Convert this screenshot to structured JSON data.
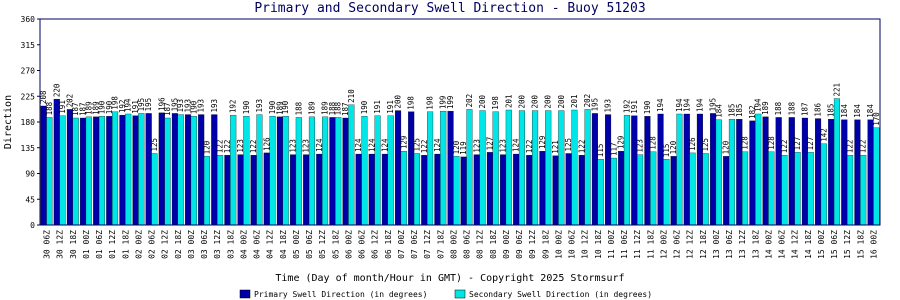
{
  "chart_data": {
    "type": "bar",
    "title": "Primary and Secondary Swell Direction - Buoy 51203",
    "y_label": "Direction",
    "x_label": "Time (Day of month/Hour in GMT) - Copyright 2025 Stormsurf",
    "categories": [
      "30 06Z",
      "30 12Z",
      "30 18Z",
      "01 00Z",
      "01 06Z",
      "01 12Z",
      "01 18Z",
      "02 00Z",
      "02 06Z",
      "02 12Z",
      "02 18Z",
      "03 00Z",
      "03 06Z",
      "03 12Z",
      "03 18Z",
      "04 00Z",
      "04 06Z",
      "04 12Z",
      "04 18Z",
      "05 00Z",
      "05 06Z",
      "05 12Z",
      "05 18Z",
      "06 00Z",
      "06 06Z",
      "06 12Z",
      "06 18Z",
      "07 00Z",
      "07 06Z",
      "07 12Z",
      "07 18Z",
      "08 00Z",
      "08 06Z",
      "08 12Z",
      "08 18Z",
      "09 00Z",
      "09 06Z",
      "09 12Z",
      "09 18Z",
      "10 00Z",
      "10 06Z",
      "10 12Z",
      "10 18Z",
      "11 00Z",
      "11 06Z",
      "11 12Z",
      "11 18Z",
      "12 00Z",
      "12 06Z",
      "12 12Z",
      "12 18Z",
      "13 00Z",
      "13 06Z",
      "13 12Z",
      "13 18Z",
      "14 00Z",
      "14 06Z",
      "14 12Z",
      "14 18Z",
      "15 00Z",
      "15 06Z",
      "15 12Z",
      "15 18Z",
      "16 00Z"
    ],
    "series": [
      {
        "name": "Primary Swell Direction (in degrees)",
        "color": "#0000a8",
        "values": [
          208,
          220,
          202,
          187,
          189,
          190,
          192,
          191,
          195,
          196,
          195,
          193,
          193,
          193,
          122,
          123,
          122,
          126,
          189,
          123,
          123,
          124,
          188,
          187,
          124,
          124,
          124,
          200,
          198,
          122,
          124,
          199,
          119,
          123,
          127,
          123,
          124,
          122,
          129,
          121,
          125,
          122,
          195,
          193,
          129,
          191,
          190,
          194,
          120,
          194,
          194,
          195,
          120,
          185,
          182,
          189,
          188,
          188,
          187,
          186,
          185,
          184,
          184,
          184
        ]
      },
      {
        "name": "Secondary Swell Direction (in degrees)",
        "color": "#00e5e5",
        "values": [
          188,
          191,
          187,
          189,
          190,
          198,
          194,
          195,
          125,
          187,
          193,
          190,
          120,
          122,
          192,
          190,
          193,
          190,
          190,
          188,
          189,
          189,
          188,
          210,
          190,
          191,
          191,
          129,
          125,
          198,
          199,
          120,
          202,
          200,
          198,
          201,
          200,
          200,
          200,
          200,
          201,
          202,
          115,
          117,
          192,
          123,
          128,
          115,
          194,
          126,
          125,
          184,
          185,
          128,
          194,
          128,
          122,
          127,
          127,
          142,
          221,
          122,
          122,
          170
        ]
      }
    ],
    "ylim": [
      0,
      360
    ],
    "yticks": [
      0,
      45,
      90,
      135,
      180,
      225,
      270,
      315,
      360
    ],
    "grid": false
  }
}
